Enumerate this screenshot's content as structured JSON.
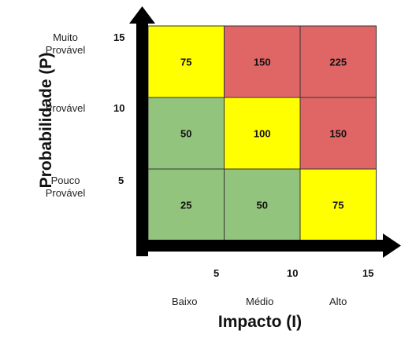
{
  "chart_data": {
    "type": "heatmap",
    "title": "",
    "xlabel": "Impacto (I)",
    "ylabel": "Probabilidade (P)",
    "x_ticks": [
      "5",
      "10",
      "15"
    ],
    "x_categories": [
      "Baixo",
      "Médio",
      "Alto"
    ],
    "y_ticks": [
      "5",
      "10",
      "15"
    ],
    "y_categories": [
      "Pouco Provável",
      "Provável",
      "Muito Provável"
    ],
    "rows": [
      {
        "probability": 15,
        "values": [
          75,
          150,
          225
        ],
        "colors": [
          "#ffff00",
          "#e06666",
          "#e06666"
        ]
      },
      {
        "probability": 10,
        "values": [
          50,
          100,
          150
        ],
        "colors": [
          "#93c47d",
          "#ffff00",
          "#e06666"
        ]
      },
      {
        "probability": 5,
        "values": [
          25,
          50,
          75
        ],
        "colors": [
          "#93c47d",
          "#93c47d",
          "#ffff00"
        ]
      }
    ],
    "palette": {
      "low": "#93c47d",
      "medium": "#ffff00",
      "high": "#e06666",
      "axis": "#000000"
    }
  },
  "labels": {
    "y_cat_top_line1": "Muito",
    "y_cat_top_line2": "Provável",
    "y_cat_mid": "Provável",
    "y_cat_bottom_line1": "Pouco",
    "y_cat_bottom_line2": "Provável"
  }
}
